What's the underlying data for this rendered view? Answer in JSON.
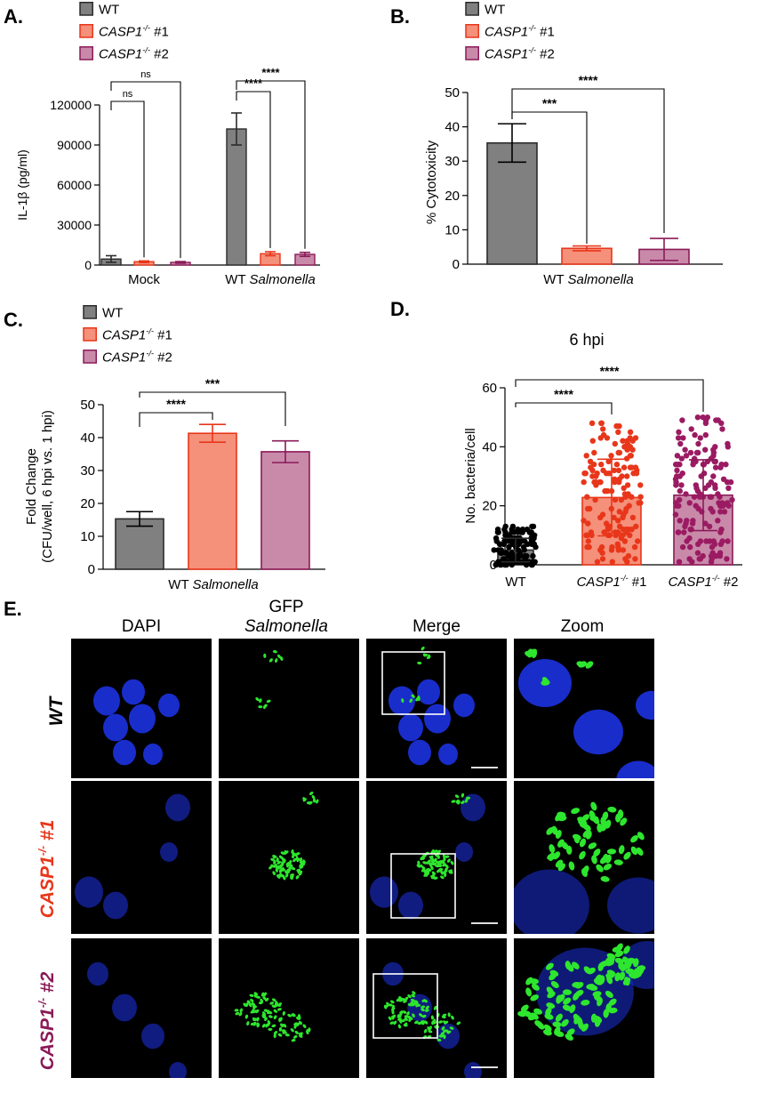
{
  "colors": {
    "wt": "#808080",
    "wt_stroke": "#2b2b2b",
    "c1": "#F5907A",
    "c1_stroke": "#E8361A",
    "c2": "#C98AAA",
    "c2_stroke": "#8B1A58",
    "c1_dot": "#E8361A",
    "c2_dot": "#9B1B62",
    "wt_dot": "#000000",
    "nucleus": "#1a2fd6",
    "bacteria": "#2ee62e"
  },
  "legend": {
    "wt": "WT",
    "c1_gene": "CASP1",
    "c1_sup": "-/-",
    "c1_suffix": " #1",
    "c2_gene": "CASP1",
    "c2_sup": "-/-",
    "c2_suffix": " #2"
  },
  "chart_data": [
    {
      "panel": "A.",
      "type": "bar",
      "ylabel": "IL-1β (pg/ml)",
      "ylim": [
        0,
        120000
      ],
      "yticks": [
        0,
        30000,
        60000,
        90000,
        120000
      ],
      "ytick_labels": [
        "0",
        "30000",
        "60000",
        "90000",
        "120000"
      ],
      "groups": [
        {
          "label": "Mock",
          "label_pre": "",
          "label_italic": ""
        },
        {
          "label": "WT Salmonella",
          "label_pre": "WT ",
          "label_italic": "Salmonella"
        }
      ],
      "series": [
        {
          "name": "WT",
          "values": [
            4500,
            102000
          ],
          "errors": [
            2500,
            12000
          ]
        },
        {
          "name": "CASP1-/- #1",
          "values": [
            2500,
            8500
          ],
          "errors": [
            600,
            1500
          ]
        },
        {
          "name": "CASP1-/- #2",
          "values": [
            2000,
            8000
          ],
          "errors": [
            600,
            1500
          ]
        }
      ],
      "annotations": [
        {
          "text": "ns",
          "group": 0,
          "from": 0,
          "to": 1,
          "level": 125000
        },
        {
          "text": "ns",
          "group": 0,
          "from": 0,
          "to": 2,
          "level": 143000
        },
        {
          "text": "****",
          "group": 1,
          "from": 0,
          "to": 1,
          "level": 122000
        },
        {
          "text": "****",
          "group": 1,
          "from": 0,
          "to": 2,
          "level": 140000
        }
      ]
    },
    {
      "panel": "B.",
      "type": "bar",
      "ylabel": "% Cytotoxicity",
      "ylim": [
        0,
        50
      ],
      "yticks": [
        0,
        10,
        20,
        30,
        40,
        50
      ],
      "ytick_labels": [
        "0",
        "10",
        "20",
        "30",
        "40",
        "50"
      ],
      "xlabel_pre": "WT ",
      "xlabel_italic": "Salmonella",
      "bars": [
        {
          "name": "WT",
          "value": 35.3,
          "error": 5.6
        },
        {
          "name": "CASP1-/- #1",
          "value": 4.6,
          "error": 0.7
        },
        {
          "name": "CASP1-/- #2",
          "value": 4.3,
          "error": 3.2
        }
      ],
      "annotations": [
        {
          "text": "***",
          "from": 0,
          "to": 1,
          "level": 45
        },
        {
          "text": "****",
          "from": 0,
          "to": 2,
          "level": 51
        }
      ]
    },
    {
      "panel": "C.",
      "type": "bar",
      "ylabel": "Fold Change",
      "ylabel2": "(CFU/well, 6 hpi vs. 1 hpi)",
      "ylim": [
        0,
        50
      ],
      "yticks": [
        0,
        10,
        20,
        30,
        40,
        50
      ],
      "ytick_labels": [
        "0",
        "10",
        "20",
        "30",
        "40",
        "50"
      ],
      "xlabel_pre": "WT ",
      "xlabel_italic": "Salmonella",
      "bars": [
        {
          "name": "WT",
          "value": 15.3,
          "error": 2.2
        },
        {
          "name": "CASP1-/- #1",
          "value": 41.3,
          "error": 2.7
        },
        {
          "name": "CASP1-/- #2",
          "value": 35.7,
          "error": 3.3
        }
      ],
      "annotations": [
        {
          "text": "****",
          "from": 0,
          "to": 1,
          "level": 47
        },
        {
          "text": "***",
          "from": 0,
          "to": 2,
          "level": 53
        }
      ]
    },
    {
      "panel": "D.",
      "type": "scatter",
      "title": "6 hpi",
      "ylabel": "No. bacteria/cell",
      "ylim": [
        0,
        60
      ],
      "yticks": [
        0,
        20,
        40,
        60
      ],
      "ytick_labels": [
        "0",
        "20",
        "40",
        "60"
      ],
      "categories": [
        "WT",
        "CASP1-/- #1",
        "CASP1-/- #2"
      ],
      "bars": [
        {
          "name": "WT",
          "mean": 5,
          "sd": 4,
          "min": 0,
          "max": 13
        },
        {
          "name": "CASP1-/- #1",
          "mean": 22.8,
          "sd": 13,
          "min": 0,
          "max": 49
        },
        {
          "name": "CASP1-/- #2",
          "mean": 23.6,
          "sd": 12,
          "min": 0,
          "max": 51
        }
      ],
      "annotations": [
        {
          "text": "****",
          "from": 0,
          "to": 1,
          "level": 55
        },
        {
          "text": "****",
          "from": 0,
          "to": 2,
          "level": 63
        }
      ]
    }
  ],
  "panelE": {
    "letter": "E.",
    "columns": {
      "dapi": "DAPI",
      "gfp_line1": "GFP",
      "gfp_line2": "Salmonella",
      "merge": "Merge",
      "zoom": "Zoom"
    },
    "rows": {
      "wt": "WT",
      "c1_gene": "CASP1",
      "c1_sup": "-/-",
      "c1_suffix": " #1",
      "c2_gene": "CASP1",
      "c2_sup": "-/-",
      "c2_suffix": " #2"
    }
  }
}
